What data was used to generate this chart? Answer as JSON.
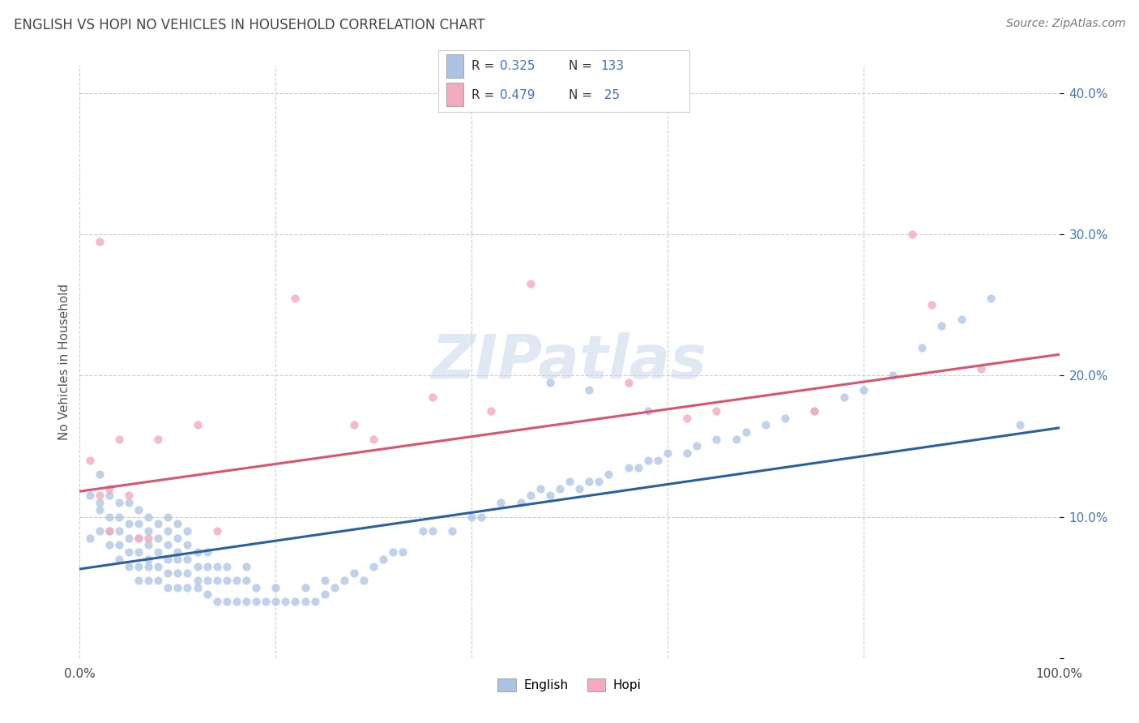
{
  "title": "ENGLISH VS HOPI NO VEHICLES IN HOUSEHOLD CORRELATION CHART",
  "source": "Source: ZipAtlas.com",
  "ylabel": "No Vehicles in Household",
  "xlim": [
    0.0,
    1.0
  ],
  "ylim": [
    0.0,
    0.42
  ],
  "xticks": [
    0.0,
    0.2,
    0.4,
    0.6,
    0.8,
    1.0
  ],
  "xticklabels": [
    "0.0%",
    "",
    "",
    "",
    "",
    "100.0%"
  ],
  "yticks": [
    0.0,
    0.1,
    0.2,
    0.3,
    0.4
  ],
  "yticklabels": [
    "",
    "10.0%",
    "20.0%",
    "30.0%",
    "40.0%"
  ],
  "english_color": "#aac4e2",
  "hopi_color": "#f4aabe",
  "english_line_color": "#2c5f9e",
  "hopi_line_color": "#d9546e",
  "R_english": 0.325,
  "N_english": 133,
  "R_hopi": 0.479,
  "N_hopi": 25,
  "watermark": "ZIPatlas",
  "legend_label_english": "English",
  "legend_label_hopi": "Hopi",
  "english_x": [
    0.01,
    0.01,
    0.02,
    0.02,
    0.02,
    0.02,
    0.03,
    0.03,
    0.03,
    0.03,
    0.04,
    0.04,
    0.04,
    0.04,
    0.04,
    0.05,
    0.05,
    0.05,
    0.05,
    0.05,
    0.06,
    0.06,
    0.06,
    0.06,
    0.06,
    0.06,
    0.07,
    0.07,
    0.07,
    0.07,
    0.07,
    0.07,
    0.08,
    0.08,
    0.08,
    0.08,
    0.08,
    0.09,
    0.09,
    0.09,
    0.09,
    0.09,
    0.09,
    0.1,
    0.1,
    0.1,
    0.1,
    0.1,
    0.1,
    0.11,
    0.11,
    0.11,
    0.11,
    0.11,
    0.12,
    0.12,
    0.12,
    0.12,
    0.13,
    0.13,
    0.13,
    0.13,
    0.14,
    0.14,
    0.14,
    0.15,
    0.15,
    0.15,
    0.16,
    0.16,
    0.17,
    0.17,
    0.17,
    0.18,
    0.18,
    0.19,
    0.2,
    0.2,
    0.21,
    0.22,
    0.23,
    0.23,
    0.24,
    0.25,
    0.25,
    0.26,
    0.27,
    0.28,
    0.29,
    0.3,
    0.31,
    0.32,
    0.33,
    0.35,
    0.36,
    0.38,
    0.4,
    0.41,
    0.43,
    0.45,
    0.46,
    0.47,
    0.48,
    0.49,
    0.5,
    0.51,
    0.52,
    0.53,
    0.54,
    0.56,
    0.57,
    0.58,
    0.59,
    0.6,
    0.62,
    0.63,
    0.65,
    0.67,
    0.68,
    0.7,
    0.72,
    0.75,
    0.78,
    0.8,
    0.83,
    0.86,
    0.88,
    0.9,
    0.93,
    0.96,
    0.48,
    0.52,
    0.58
  ],
  "english_y": [
    0.085,
    0.115,
    0.09,
    0.105,
    0.11,
    0.13,
    0.08,
    0.09,
    0.1,
    0.115,
    0.07,
    0.08,
    0.09,
    0.1,
    0.11,
    0.065,
    0.075,
    0.085,
    0.095,
    0.11,
    0.055,
    0.065,
    0.075,
    0.085,
    0.095,
    0.105,
    0.055,
    0.065,
    0.07,
    0.08,
    0.09,
    0.1,
    0.055,
    0.065,
    0.075,
    0.085,
    0.095,
    0.05,
    0.06,
    0.07,
    0.08,
    0.09,
    0.1,
    0.05,
    0.06,
    0.07,
    0.075,
    0.085,
    0.095,
    0.05,
    0.06,
    0.07,
    0.08,
    0.09,
    0.05,
    0.055,
    0.065,
    0.075,
    0.045,
    0.055,
    0.065,
    0.075,
    0.04,
    0.055,
    0.065,
    0.04,
    0.055,
    0.065,
    0.04,
    0.055,
    0.04,
    0.055,
    0.065,
    0.04,
    0.05,
    0.04,
    0.04,
    0.05,
    0.04,
    0.04,
    0.04,
    0.05,
    0.04,
    0.045,
    0.055,
    0.05,
    0.055,
    0.06,
    0.055,
    0.065,
    0.07,
    0.075,
    0.075,
    0.09,
    0.09,
    0.09,
    0.1,
    0.1,
    0.11,
    0.11,
    0.115,
    0.12,
    0.115,
    0.12,
    0.125,
    0.12,
    0.125,
    0.125,
    0.13,
    0.135,
    0.135,
    0.14,
    0.14,
    0.145,
    0.145,
    0.15,
    0.155,
    0.155,
    0.16,
    0.165,
    0.17,
    0.175,
    0.185,
    0.19,
    0.2,
    0.22,
    0.235,
    0.24,
    0.255,
    0.165,
    0.195,
    0.19,
    0.175
  ],
  "hopi_x": [
    0.01,
    0.02,
    0.02,
    0.03,
    0.03,
    0.04,
    0.05,
    0.06,
    0.07,
    0.08,
    0.12,
    0.14,
    0.22,
    0.28,
    0.3,
    0.36,
    0.42,
    0.46,
    0.56,
    0.62,
    0.65,
    0.75,
    0.85,
    0.87,
    0.92
  ],
  "hopi_y": [
    0.14,
    0.115,
    0.295,
    0.09,
    0.12,
    0.155,
    0.115,
    0.085,
    0.085,
    0.155,
    0.165,
    0.09,
    0.255,
    0.165,
    0.155,
    0.185,
    0.175,
    0.265,
    0.195,
    0.17,
    0.175,
    0.175,
    0.3,
    0.25,
    0.205
  ],
  "english_line_x0": 0.0,
  "english_line_y0": 0.063,
  "english_line_x1": 1.0,
  "english_line_y1": 0.163,
  "hopi_line_x0": 0.0,
  "hopi_line_y0": 0.118,
  "hopi_line_x1": 1.0,
  "hopi_line_y1": 0.215
}
